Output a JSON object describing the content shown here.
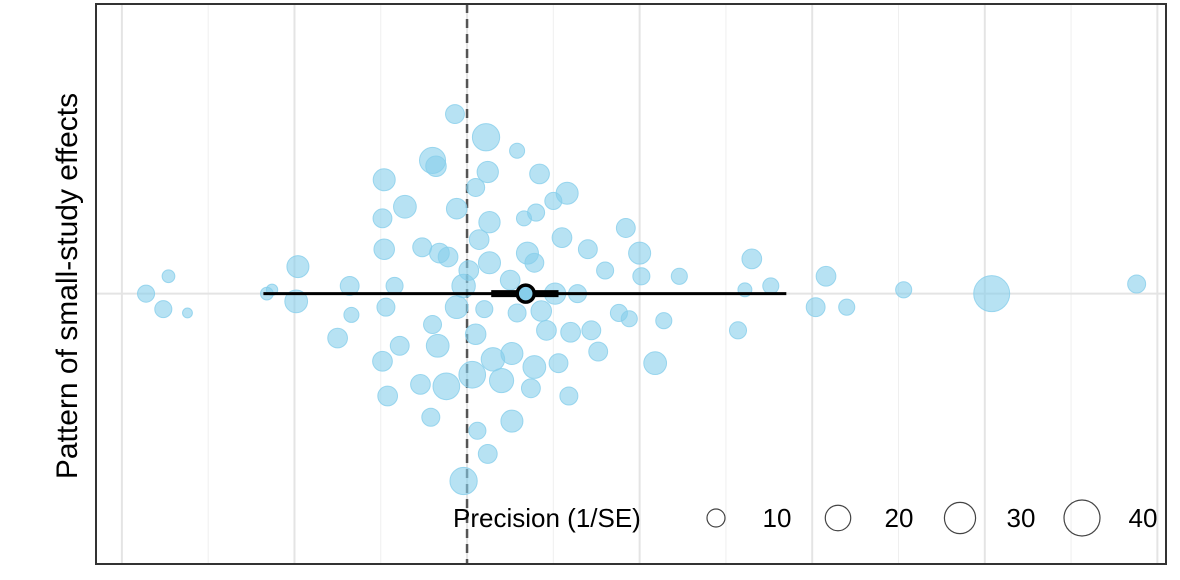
{
  "chart_data": {
    "type": "scatter",
    "subtype": "beeswarm",
    "title": "",
    "xlabel": "",
    "ylabel": "Pattern of small-study effects",
    "grid": true,
    "reference_line": {
      "x": 0.0,
      "style": "dashed",
      "color": "#555555"
    },
    "point_color": "#87CEEB",
    "points": [
      {
        "x": -18.6,
        "y": 0.0,
        "p": 9
      },
      {
        "x": -17.3,
        "y": 0.9,
        "p": 5
      },
      {
        "x": -17.6,
        "y": -0.8,
        "p": 9
      },
      {
        "x": -16.2,
        "y": -1.0,
        "p": 3
      },
      {
        "x": -11.6,
        "y": 0.0,
        "p": 5
      },
      {
        "x": -9.8,
        "y": 1.4,
        "p": 15
      },
      {
        "x": -9.9,
        "y": -0.4,
        "p": 16
      },
      {
        "x": -6.8,
        "y": 0.4,
        "p": 11
      },
      {
        "x": -6.7,
        "y": -1.1,
        "p": 7
      },
      {
        "x": -7.5,
        "y": -2.3,
        "p": 12
      },
      {
        "x": -4.8,
        "y": 5.9,
        "p": 15
      },
      {
        "x": -3.6,
        "y": 4.5,
        "p": 16
      },
      {
        "x": -4.9,
        "y": 3.9,
        "p": 11
      },
      {
        "x": -4.8,
        "y": 2.3,
        "p": 13
      },
      {
        "x": -4.2,
        "y": 0.4,
        "p": 9
      },
      {
        "x": -4.7,
        "y": -0.7,
        "p": 10
      },
      {
        "x": -4.9,
        "y": -3.5,
        "p": 12
      },
      {
        "x": -3.9,
        "y": -2.7,
        "p": 11
      },
      {
        "x": -4.6,
        "y": -5.3,
        "p": 12
      },
      {
        "x": -2.7,
        "y": -4.7,
        "p": 12
      },
      {
        "x": -2.0,
        "y": 6.9,
        "p": 21
      },
      {
        "x": -1.8,
        "y": 6.6,
        "p": 13
      },
      {
        "x": -1.6,
        "y": 2.1,
        "p": 12
      },
      {
        "x": -2.6,
        "y": 2.4,
        "p": 11
      },
      {
        "x": -1.1,
        "y": 1.9,
        "p": 12
      },
      {
        "x": -2.0,
        "y": -1.6,
        "p": 10
      },
      {
        "x": -1.7,
        "y": -2.7,
        "p": 16
      },
      {
        "x": -1.2,
        "y": -4.8,
        "p": 22
      },
      {
        "x": -2.1,
        "y": -6.4,
        "p": 10
      },
      {
        "x": -0.7,
        "y": 9.3,
        "p": 11
      },
      {
        "x": -0.6,
        "y": 4.4,
        "p": 13
      },
      {
        "x": -0.2,
        "y": 0.4,
        "p": 17
      },
      {
        "x": -0.6,
        "y": -0.7,
        "p": 16
      },
      {
        "x": 0.1,
        "y": 1.2,
        "p": 12
      },
      {
        "x": 0.5,
        "y": -2.1,
        "p": 13
      },
      {
        "x": 0.3,
        "y": -4.2,
        "p": 22
      },
      {
        "x": -0.2,
        "y": -9.7,
        "p": 23
      },
      {
        "x": 1.1,
        "y": 8.1,
        "p": 23
      },
      {
        "x": 0.5,
        "y": 5.5,
        "p": 10
      },
      {
        "x": 1.2,
        "y": 6.3,
        "p": 14
      },
      {
        "x": 1.3,
        "y": 3.7,
        "p": 14
      },
      {
        "x": 0.7,
        "y": 2.8,
        "p": 12
      },
      {
        "x": 1.3,
        "y": 1.6,
        "p": 15
      },
      {
        "x": 1.0,
        "y": -0.8,
        "p": 9
      },
      {
        "x": 1.5,
        "y": -3.4,
        "p": 17
      },
      {
        "x": 2.0,
        "y": -4.5,
        "p": 18
      },
      {
        "x": 0.6,
        "y": -7.1,
        "p": 9
      },
      {
        "x": 1.2,
        "y": -8.3,
        "p": 11
      },
      {
        "x": 2.6,
        "y": -6.6,
        "p": 15
      },
      {
        "x": 2.9,
        "y": 7.4,
        "p": 7
      },
      {
        "x": 2.5,
        "y": 0.7,
        "p": 12
      },
      {
        "x": 2.9,
        "y": -1.0,
        "p": 10
      },
      {
        "x": 2.6,
        "y": -3.1,
        "p": 15
      },
      {
        "x": 4.2,
        "y": 6.2,
        "p": 12
      },
      {
        "x": 4.0,
        "y": 4.2,
        "p": 9
      },
      {
        "x": 3.5,
        "y": 2.1,
        "p": 15
      },
      {
        "x": 3.9,
        "y": 1.6,
        "p": 11
      },
      {
        "x": 4.3,
        "y": -0.9,
        "p": 13
      },
      {
        "x": 4.6,
        "y": -1.9,
        "p": 12
      },
      {
        "x": 3.9,
        "y": -3.8,
        "p": 16
      },
      {
        "x": 3.7,
        "y": -4.9,
        "p": 11
      },
      {
        "x": 5.0,
        "y": 4.8,
        "p": 9
      },
      {
        "x": 5.8,
        "y": 5.2,
        "p": 15
      },
      {
        "x": 5.5,
        "y": 2.9,
        "p": 12
      },
      {
        "x": 5.1,
        "y": 0.0,
        "p": 14
      },
      {
        "x": 6.4,
        "y": 0.0,
        "p": 10
      },
      {
        "x": 5.3,
        "y": -3.6,
        "p": 11
      },
      {
        "x": 6.0,
        "y": -2.0,
        "p": 12
      },
      {
        "x": 5.9,
        "y": -5.3,
        "p": 10
      },
      {
        "x": 7.0,
        "y": 2.3,
        "p": 11
      },
      {
        "x": 7.2,
        "y": -1.9,
        "p": 11
      },
      {
        "x": 7.6,
        "y": -3.0,
        "p": 11
      },
      {
        "x": 8.0,
        "y": 1.2,
        "p": 9
      },
      {
        "x": 8.8,
        "y": -1.0,
        "p": 9
      },
      {
        "x": 9.2,
        "y": 3.4,
        "p": 11
      },
      {
        "x": 9.4,
        "y": -1.3,
        "p": 8
      },
      {
        "x": 10.0,
        "y": 2.1,
        "p": 15
      },
      {
        "x": 10.1,
        "y": 0.9,
        "p": 9
      },
      {
        "x": 10.9,
        "y": -3.6,
        "p": 16
      },
      {
        "x": 11.4,
        "y": -1.4,
        "p": 8
      },
      {
        "x": 12.3,
        "y": 0.9,
        "p": 8
      },
      {
        "x": 16.5,
        "y": 1.8,
        "p": 12
      },
      {
        "x": 15.7,
        "y": -1.9,
        "p": 9
      },
      {
        "x": 16.1,
        "y": 0.2,
        "p": 6
      },
      {
        "x": 17.6,
        "y": 0.4,
        "p": 8
      },
      {
        "x": 20.8,
        "y": 0.9,
        "p": 12
      },
      {
        "x": 20.2,
        "y": -0.7,
        "p": 11
      },
      {
        "x": 22.0,
        "y": -0.7,
        "p": 8
      },
      {
        "x": 25.3,
        "y": 0.2,
        "p": 8
      },
      {
        "x": 30.4,
        "y": 0.0,
        "p": 40
      },
      {
        "x": 38.8,
        "y": 0.5,
        "p": 10
      },
      {
        "x": -11.3,
        "y": 0.2,
        "p": 4
      },
      {
        "x": 3.3,
        "y": 3.9,
        "p": 7
      }
    ],
    "summary": {
      "estimate": 3.4,
      "ci95": [
        -11.8,
        18.5
      ],
      "inner_interval": [
        1.4,
        5.3
      ]
    },
    "xlim": [
      -21.5,
      40.5
    ],
    "ylim": [
      -14.0,
      15.0
    ],
    "legend": {
      "title": "Precision (1/SE)",
      "placement": "bottom-right",
      "entries": [
        {
          "label": "10",
          "p": 10
        },
        {
          "label": "20",
          "p": 20
        },
        {
          "label": "30",
          "p": 30
        },
        {
          "label": "40",
          "p": 40
        }
      ]
    }
  }
}
